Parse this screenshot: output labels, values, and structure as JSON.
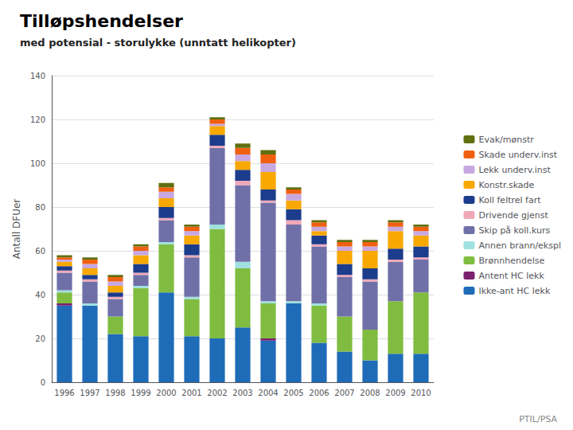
{
  "chart_data": {
    "type": "bar",
    "title": "Tilløpshendelser",
    "subtitle": "med potensial - storulykke (unntatt helikopter)",
    "ylabel": "Antall DFUer",
    "annotations": [
      "PTIL/PSA"
    ],
    "categories": [
      "1996",
      "1997",
      "1998",
      "1999",
      "2000",
      "2001",
      "2002",
      "2003",
      "2004",
      "2005",
      "2006",
      "2007",
      "2008",
      "2009",
      "2010"
    ],
    "ylim": [
      0,
      140
    ],
    "yticks": [
      0,
      20,
      40,
      60,
      80,
      100,
      120,
      140
    ],
    "grid": true,
    "stacked": true,
    "legend": "right",
    "series": [
      {
        "name": "Ikke-ant HC lekk",
        "color": "#1e6bb8",
        "values": [
          35,
          35,
          22,
          21,
          41,
          21,
          20,
          25,
          19,
          36,
          18,
          14,
          10,
          13,
          13
        ]
      },
      {
        "name": "Antent HC lekk",
        "color": "#7b1f6e",
        "values": [
          1,
          0,
          0,
          0,
          0,
          0,
          0,
          0,
          1,
          0,
          0,
          0,
          0,
          0,
          0
        ]
      },
      {
        "name": "Brønnhendelse",
        "color": "#80bc40",
        "values": [
          5,
          0,
          8,
          22,
          22,
          17,
          50,
          27,
          16,
          0,
          17,
          16,
          14,
          24,
          28
        ]
      },
      {
        "name": "Annen brann/ekspl",
        "color": "#a0e0e0",
        "values": [
          1,
          1,
          0,
          1,
          1,
          1,
          2,
          3,
          1,
          1,
          1,
          0,
          0,
          0,
          0
        ]
      },
      {
        "name": "Skip på koll.kurs",
        "color": "#7070a8",
        "values": [
          8,
          10,
          8,
          5,
          10,
          18,
          35,
          35,
          45,
          35,
          26,
          18,
          22,
          18,
          15
        ]
      },
      {
        "name": "Drivende gjenst",
        "color": "#f0a8b8",
        "values": [
          1,
          1,
          1,
          1,
          1,
          1,
          1,
          2,
          1,
          2,
          1,
          1,
          1,
          1,
          1
        ]
      },
      {
        "name": "Koll feltrel fart",
        "color": "#1c3c8c",
        "values": [
          2,
          2,
          2,
          4,
          5,
          5,
          5,
          5,
          5,
          5,
          4,
          5,
          5,
          5,
          5
        ]
      },
      {
        "name": "Konstr.skade",
        "color": "#f8a800",
        "values": [
          2,
          3,
          3,
          4,
          4,
          4,
          4,
          4,
          8,
          4,
          2,
          6,
          8,
          8,
          5
        ]
      },
      {
        "name": "Lekk underv.inst",
        "color": "#c8a8e0",
        "values": [
          1,
          2,
          2,
          2,
          3,
          2,
          1,
          3,
          4,
          3,
          2,
          2,
          2,
          2,
          2
        ]
      },
      {
        "name": "Skade underv.inst",
        "color": "#f06010",
        "values": [
          1,
          2,
          2,
          2,
          2,
          2,
          2,
          3,
          4,
          2,
          2,
          2,
          2,
          2,
          2
        ]
      },
      {
        "name": "Evak/mønstr",
        "color": "#607010",
        "values": [
          1,
          1,
          1,
          1,
          2,
          1,
          1,
          2,
          2,
          1,
          1,
          1,
          1,
          1,
          1
        ]
      }
    ]
  }
}
